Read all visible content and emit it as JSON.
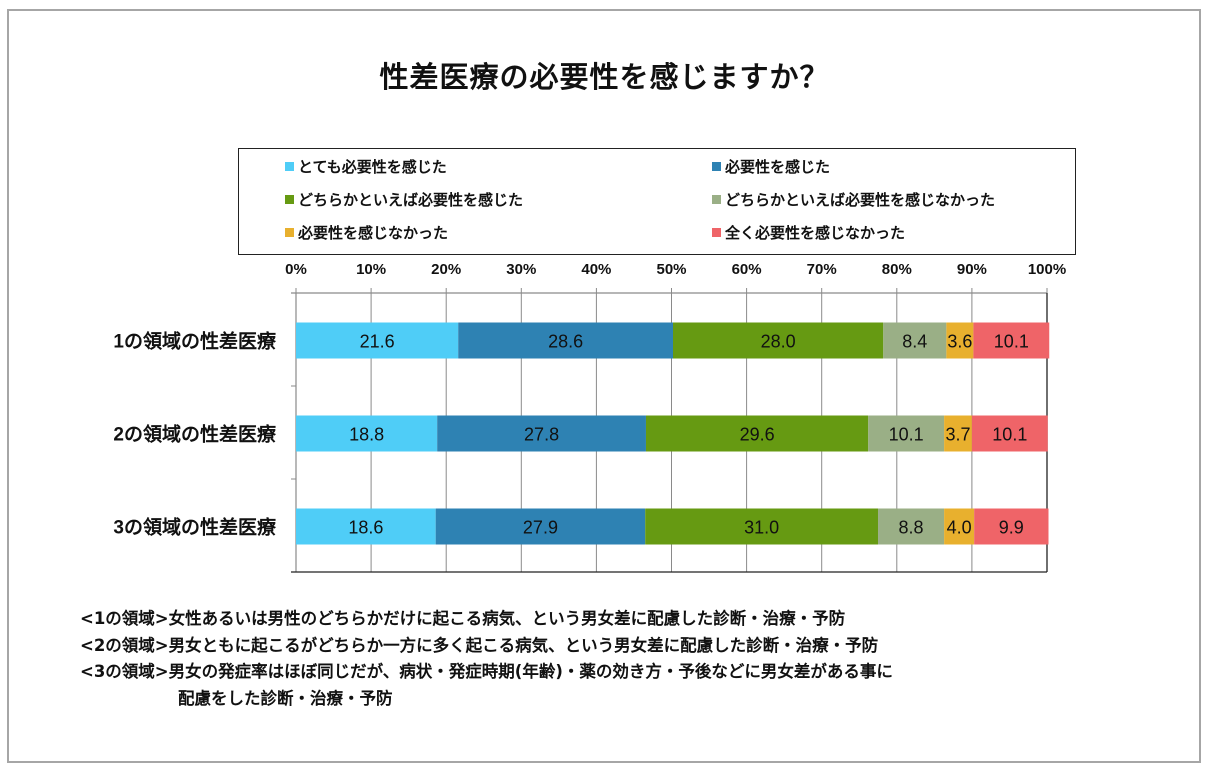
{
  "chart_data": {
    "type": "bar",
    "orientation": "horizontal",
    "stacked": "percent",
    "title": "性差医療の必要性を感じますか？",
    "categories": [
      "1の領域の性差医療",
      "2の領域の性差医療",
      "3の領域の性差医療"
    ],
    "series": [
      {
        "name": "とても必要性を感じた",
        "color": "#4fcdf7",
        "values": [
          21.6,
          18.8,
          18.6
        ],
        "labels": [
          "21.6",
          "18.8",
          "18.6"
        ]
      },
      {
        "name": "必要性を感じた",
        "color": "#2e82b3",
        "values": [
          28.6,
          27.8,
          27.9
        ],
        "labels": [
          "28.6",
          "27.8",
          "27.9"
        ]
      },
      {
        "name": "どちらかといえば必要性を感じた",
        "color": "#669a12",
        "values": [
          28.0,
          29.6,
          31.0
        ],
        "labels": [
          "28.0",
          "29.6",
          "31.0"
        ]
      },
      {
        "name": "どちらかといえば必要性を感じなかった",
        "color": "#9aaf86",
        "values": [
          8.4,
          10.1,
          8.8
        ],
        "labels": [
          "8.4",
          "10.1",
          "8.8"
        ]
      },
      {
        "name": "必要性を感じなかった",
        "color": "#e8b02e",
        "values": [
          3.6,
          3.7,
          4.0
        ],
        "labels": [
          "3.6",
          "3.7",
          "4.0"
        ]
      },
      {
        "name": "全く必要性を感じなかった",
        "color": "#ef6468",
        "values": [
          10.1,
          10.1,
          9.9
        ],
        "labels": [
          "10.1",
          "10.1",
          "9.9"
        ]
      }
    ],
    "xlim": [
      0,
      100
    ],
    "xticks": [
      0,
      10,
      20,
      30,
      40,
      50,
      60,
      70,
      80,
      90,
      100
    ],
    "xtick_labels": [
      "0%",
      "10%",
      "20%",
      "30%",
      "40%",
      "50%",
      "60%",
      "70%",
      "80%",
      "90%",
      "100%"
    ],
    "xaxis_position": "top",
    "grid": true,
    "legend_position": "top",
    "xlabel": "",
    "ylabel": ""
  },
  "footnotes": [
    "<1の領域>女性あるいは男性のどちらかだけに起こる病気、という男女差に配慮した診断・治療・予防",
    "<2の領域>男女ともに起こるがどちらか一方に多く起こる病気、という男女差に配慮した診断・治療・予防",
    "<3の領域>男女の発症率はほぼ同じだが、病状・発症時期(年齢)・薬の効き方・予後などに男女差がある事に",
    "配慮をした診断・治療・予防"
  ]
}
